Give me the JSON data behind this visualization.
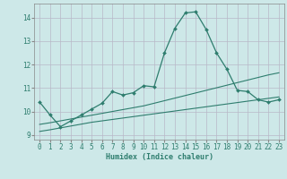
{
  "xlabel": "Humidex (Indice chaleur)",
  "xlim": [
    -0.5,
    23.5
  ],
  "ylim": [
    8.8,
    14.6
  ],
  "yticks": [
    9,
    10,
    11,
    12,
    13,
    14
  ],
  "xticks": [
    0,
    1,
    2,
    3,
    4,
    5,
    6,
    7,
    8,
    9,
    10,
    11,
    12,
    13,
    14,
    15,
    16,
    17,
    18,
    19,
    20,
    21,
    22,
    23
  ],
  "bg_color": "#cde8e8",
  "grid_color": "#b8b8c8",
  "line_color": "#2e7d6e",
  "lines": [
    {
      "x": [
        0,
        1,
        2,
        3,
        4,
        5,
        6,
        7,
        8,
        9,
        10,
        11,
        12,
        13,
        14,
        15,
        16,
        17,
        18,
        19,
        20,
        21,
        22,
        23
      ],
      "y": [
        10.4,
        9.85,
        9.35,
        9.6,
        9.85,
        10.1,
        10.35,
        10.85,
        10.7,
        10.8,
        11.1,
        11.05,
        12.5,
        13.55,
        14.2,
        14.25,
        13.5,
        12.5,
        11.8,
        10.9,
        10.85,
        10.5,
        10.4,
        10.5
      ],
      "marker": true
    },
    {
      "x": [
        0,
        1,
        2,
        3,
        4,
        5,
        6,
        7,
        8,
        9,
        10,
        11,
        12,
        13,
        14,
        15,
        16,
        17,
        18,
        19,
        20,
        21,
        22,
        23
      ],
      "y": [
        9.45,
        9.52,
        9.6,
        9.68,
        9.76,
        9.84,
        9.92,
        10.0,
        10.08,
        10.16,
        10.24,
        10.35,
        10.46,
        10.57,
        10.68,
        10.79,
        10.9,
        11.01,
        11.12,
        11.23,
        11.34,
        11.45,
        11.56,
        11.65
      ],
      "marker": false
    },
    {
      "x": [
        0,
        1,
        2,
        3,
        4,
        5,
        6,
        7,
        8,
        9,
        10,
        11,
        12,
        13,
        14,
        15,
        16,
        17,
        18,
        19,
        20,
        21,
        22,
        23
      ],
      "y": [
        9.15,
        9.22,
        9.3,
        9.38,
        9.46,
        9.54,
        9.6,
        9.66,
        9.72,
        9.78,
        9.84,
        9.9,
        9.96,
        10.02,
        10.08,
        10.14,
        10.2,
        10.26,
        10.32,
        10.38,
        10.44,
        10.5,
        10.56,
        10.62
      ],
      "marker": false
    }
  ]
}
